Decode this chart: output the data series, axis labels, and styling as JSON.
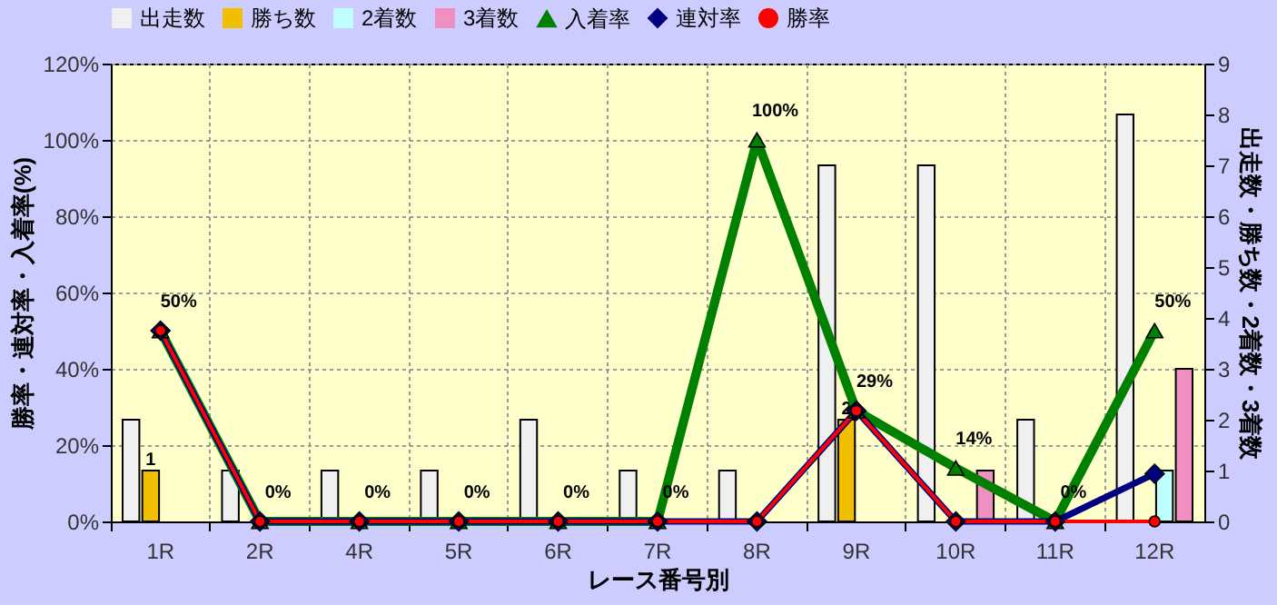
{
  "chart_data": {
    "type": "bar",
    "xlabel": "レース番号別",
    "ylabel": "勝率・連対率・入着率(%)",
    "y2label": "出走数・勝ち数・2着数・3着数",
    "categories": [
      "1R",
      "2R",
      "4R",
      "5R",
      "6R",
      "7R",
      "8R",
      "9R",
      "10R",
      "11R",
      "12R"
    ],
    "series": [
      {
        "name": "出走数",
        "color": "#f0f0f0",
        "axis": "y2",
        "values": [
          2,
          1,
          1,
          1,
          2,
          1,
          1,
          7,
          7,
          2,
          8
        ]
      },
      {
        "name": "勝ち数",
        "color": "#f0c000",
        "axis": "y2",
        "values": [
          1,
          0,
          0,
          0,
          0,
          0,
          0,
          2,
          0,
          0,
          0
        ],
        "value_labels": [
          "1",
          null,
          null,
          null,
          null,
          null,
          null,
          "2",
          null,
          null,
          null
        ]
      },
      {
        "name": "2着数",
        "color": "#c0ffff",
        "axis": "y2",
        "values": [
          0,
          0,
          0,
          0,
          0,
          0,
          0,
          0,
          0,
          0,
          1
        ]
      },
      {
        "name": "3着数",
        "color": "#f090c0",
        "axis": "y2",
        "values": [
          0,
          0,
          0,
          0,
          0,
          0,
          0,
          0,
          1,
          0,
          3
        ]
      },
      {
        "name": "入着率",
        "type": "line",
        "color": "#008000",
        "marker": "triangle",
        "values": [
          50,
          0,
          0,
          0,
          0,
          0,
          100,
          29,
          14,
          0,
          50
        ],
        "value_labels": [
          "50%",
          "0%",
          "0%",
          "0%",
          "0%",
          "0%",
          "100%",
          "29%",
          "14%",
          "0%",
          "50%"
        ]
      },
      {
        "name": "連対率",
        "type": "line",
        "color": "#000080",
        "marker": "diamond",
        "values": [
          50,
          0,
          0,
          0,
          0,
          0,
          0,
          29,
          0,
          0,
          12.5
        ]
      },
      {
        "name": "勝率",
        "type": "line",
        "color": "#ff0000",
        "marker": "circle",
        "values": [
          50,
          0,
          0,
          0,
          0,
          0,
          0,
          29,
          0,
          0,
          0
        ]
      }
    ],
    "ylim": [
      0,
      120
    ],
    "yticks": [
      {
        "value": 0,
        "label": "0%"
      },
      {
        "value": 20,
        "label": "20%"
      },
      {
        "value": 40,
        "label": "40%"
      },
      {
        "value": 60,
        "label": "60%"
      },
      {
        "value": 80,
        "label": "80%"
      },
      {
        "value": 100,
        "label": "100%"
      },
      {
        "value": 120,
        "label": "120%"
      }
    ],
    "y2lim": [
      0,
      9
    ],
    "y2ticks": [
      0,
      1,
      2,
      3,
      4,
      5,
      6,
      7,
      8,
      9
    ],
    "grid": true,
    "legend": "top",
    "line_style": "solid"
  }
}
